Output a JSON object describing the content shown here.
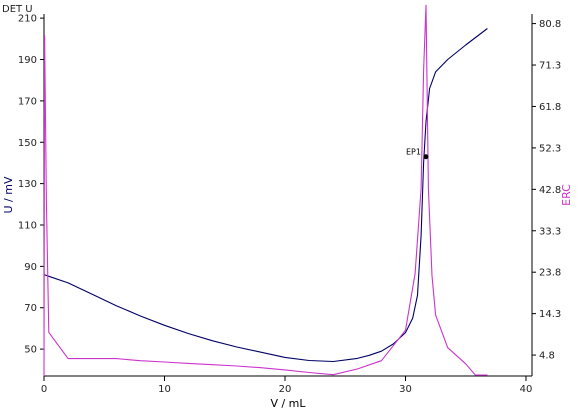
{
  "colors": {
    "primary": "#000066",
    "secondary": "#cc33cc",
    "axis": "#000000",
    "marker": "#000000"
  },
  "chart_data": {
    "type": "line",
    "title": "DET U",
    "xlabel": "V / mL",
    "ylabel": "U / mV",
    "ylabel_right": "ERC",
    "xlim": [
      0,
      40.5
    ],
    "ylim": [
      37,
      212
    ],
    "ylim_right": [
      0,
      83
    ],
    "x_ticks": [
      {
        "v": 0,
        "label": "0"
      },
      {
        "v": 10,
        "label": "10"
      },
      {
        "v": 20,
        "label": "20"
      },
      {
        "v": 30,
        "label": "30"
      },
      {
        "v": 40,
        "label": "40"
      }
    ],
    "y_ticks": [
      {
        "v": 50,
        "label": "50"
      },
      {
        "v": 70,
        "label": "70"
      },
      {
        "v": 90,
        "label": "90"
      },
      {
        "v": 110,
        "label": "110"
      },
      {
        "v": 130,
        "label": "130"
      },
      {
        "v": 150,
        "label": "150"
      },
      {
        "v": 170,
        "label": "170"
      },
      {
        "v": 190,
        "label": "190"
      },
      {
        "v": 210,
        "label": "210"
      }
    ],
    "y2_ticks": [
      {
        "v": 4.8,
        "label": "4.8"
      },
      {
        "v": 14.3,
        "label": "14.3"
      },
      {
        "v": 23.8,
        "label": "23.8"
      },
      {
        "v": 33.3,
        "label": "33.3"
      },
      {
        "v": 42.8,
        "label": "42.8"
      },
      {
        "v": 52.3,
        "label": "52.3"
      },
      {
        "v": 61.8,
        "label": "61.8"
      },
      {
        "v": 71.3,
        "label": "71.3"
      },
      {
        "v": 80.8,
        "label": "80.8"
      }
    ],
    "series": [
      {
        "axis": "left",
        "color": "#000066",
        "x": [
          0,
          0.5,
          2,
          4,
          6,
          8,
          10,
          12,
          14,
          16,
          18,
          20,
          22,
          24,
          26,
          27,
          28,
          29,
          30,
          30.6,
          31,
          31.3,
          31.5,
          31.7,
          32,
          32.5,
          33.5,
          35,
          36.8
        ],
        "y": [
          86,
          85,
          82,
          76.5,
          71,
          66,
          61.5,
          57.5,
          54,
          51,
          48.5,
          46,
          44.5,
          44,
          45.5,
          47,
          49,
          52.5,
          58,
          65,
          76,
          105,
          140,
          160,
          176,
          184,
          190,
          197,
          205
        ]
      },
      {
        "axis": "right",
        "color": "#cc33cc",
        "x": [
          0,
          0.05,
          0.2,
          0.4,
          2,
          4,
          6,
          8,
          10,
          12,
          14,
          16,
          18,
          20,
          22,
          24,
          26,
          28,
          30,
          30.8,
          31.3,
          31.5,
          31.7,
          31.9,
          32.2,
          32.5,
          33.5,
          35,
          35.8,
          36.8
        ],
        "y": [
          0,
          78,
          40,
          10,
          4,
          4,
          4,
          3.5,
          3.2,
          2.9,
          2.6,
          2.3,
          1.9,
          1.4,
          0.8,
          0.3,
          1.6,
          3.5,
          10.5,
          23.5,
          43,
          70,
          85,
          43,
          23,
          14,
          6.5,
          2.8,
          0.2,
          0.2
        ]
      }
    ],
    "annotations": [
      {
        "label": "EP1",
        "x": 31.7,
        "y": 143
      }
    ]
  }
}
